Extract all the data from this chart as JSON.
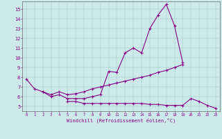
{
  "xlabel": "Windchill (Refroidissement éolien,°C)",
  "bg_color": "#cceaea",
  "line_color": "#880088",
  "grid_color": "#99bbbb",
  "ylim": [
    4.5,
    15.8
  ],
  "xlim": [
    -0.5,
    23.5
  ],
  "yticks": [
    5,
    6,
    7,
    8,
    9,
    10,
    11,
    12,
    13,
    14,
    15
  ],
  "xticks": [
    0,
    1,
    2,
    3,
    4,
    5,
    6,
    7,
    8,
    9,
    10,
    11,
    12,
    13,
    14,
    15,
    16,
    17,
    18,
    19,
    20,
    21,
    22,
    23
  ],
  "lines": [
    {
      "x": [
        0,
        1,
        2,
        3,
        4,
        5,
        6,
        7,
        8,
        9,
        10,
        11,
        12,
        13,
        14,
        15,
        16,
        17,
        18,
        19
      ],
      "y": [
        7.8,
        6.8,
        6.5,
        6.2,
        6.5,
        6.2,
        6.3,
        6.5,
        6.8,
        7.0,
        7.2,
        7.4,
        7.6,
        7.8,
        8.0,
        8.2,
        8.5,
        8.7,
        9.0,
        9.3
      ]
    },
    {
      "x": [
        2,
        3,
        4,
        5,
        6,
        7,
        8,
        9,
        10,
        11,
        12,
        13,
        14,
        15,
        16,
        17,
        18,
        19
      ],
      "y": [
        6.5,
        6.0,
        6.2,
        5.8,
        5.8,
        5.8,
        6.0,
        6.2,
        8.6,
        8.5,
        10.5,
        11.0,
        10.5,
        13.0,
        14.4,
        15.5,
        13.3,
        9.5
      ]
    },
    {
      "x": [
        5,
        6,
        7,
        8,
        9,
        10,
        11,
        12,
        13,
        14,
        15,
        16,
        17,
        18,
        19,
        20,
        21,
        22,
        23
      ],
      "y": [
        5.5,
        5.5,
        5.3,
        5.3,
        5.3,
        5.3,
        5.3,
        5.3,
        5.3,
        5.3,
        5.2,
        5.2,
        5.1,
        5.1,
        5.1,
        5.8,
        5.5,
        5.1,
        4.8
      ]
    }
  ]
}
